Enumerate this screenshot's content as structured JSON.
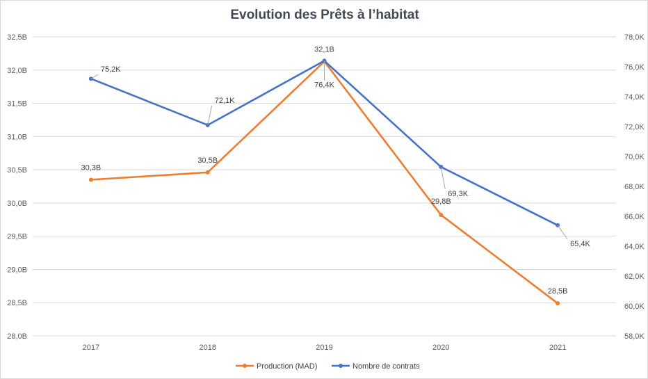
{
  "chart_data": {
    "type": "line",
    "title": "Evolution  des Prêts à l’habitat",
    "categories": [
      "2017",
      "2018",
      "2019",
      "2020",
      "2021"
    ],
    "y_left": {
      "ticks": [
        "28,0B",
        "28,5B",
        "29,0B",
        "29,5B",
        "30,0B",
        "30,5B",
        "31,0B",
        "31,5B",
        "32,0B",
        "32,5B"
      ],
      "min": 28.0,
      "max": 32.5
    },
    "y_right": {
      "ticks": [
        "58,0K",
        "60,0K",
        "62,0K",
        "64,0K",
        "66,0K",
        "68,0K",
        "70,0K",
        "72,0K",
        "74,0K",
        "76,0K",
        "78,0K"
      ],
      "min": 58.0,
      "max": 78.0
    },
    "grid": true,
    "legend_position": "bottom",
    "series": [
      {
        "name": "Production (MAD)",
        "axis": "left",
        "color": "#ED7D31",
        "values": [
          30.35,
          30.46,
          32.13,
          29.82,
          28.49
        ],
        "labels": [
          "30,3B",
          "30,5B",
          "32,1B",
          "29,8B",
          "28,5B"
        ]
      },
      {
        "name": "Nombre de contrats",
        "axis": "right",
        "color": "#4472C4",
        "values": [
          75.2,
          72.1,
          76.4,
          69.3,
          65.4
        ],
        "labels": [
          "75,2K",
          "72,1K",
          "76,4K",
          "69,3K",
          "65,4K"
        ]
      }
    ]
  }
}
